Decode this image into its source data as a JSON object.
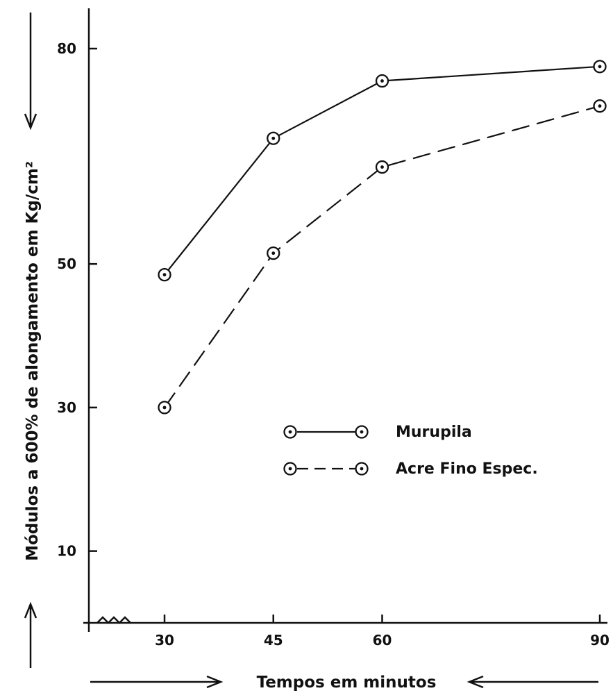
{
  "chart_data": {
    "type": "line",
    "xlabel": "Tempos em minutos",
    "ylabel": "Módulos a 600% de alongamento em Kg/cm²",
    "x": [
      30,
      45,
      60,
      90
    ],
    "x_ticks": [
      "30",
      "45",
      "60",
      "90"
    ],
    "y_ticks": [
      "10",
      "30",
      "50",
      "80"
    ],
    "ylim": [
      0,
      83
    ],
    "xlim": [
      20,
      90
    ],
    "grid": false,
    "legend_position": "center-right",
    "series": [
      {
        "name": "Murupila",
        "style": "solid",
        "values": [
          48.5,
          67.5,
          75.5,
          77.5
        ]
      },
      {
        "name": "Acre Fino Espec.",
        "style": "dashed",
        "values": [
          30.0,
          51.5,
          63.5,
          72.0
        ]
      }
    ]
  }
}
